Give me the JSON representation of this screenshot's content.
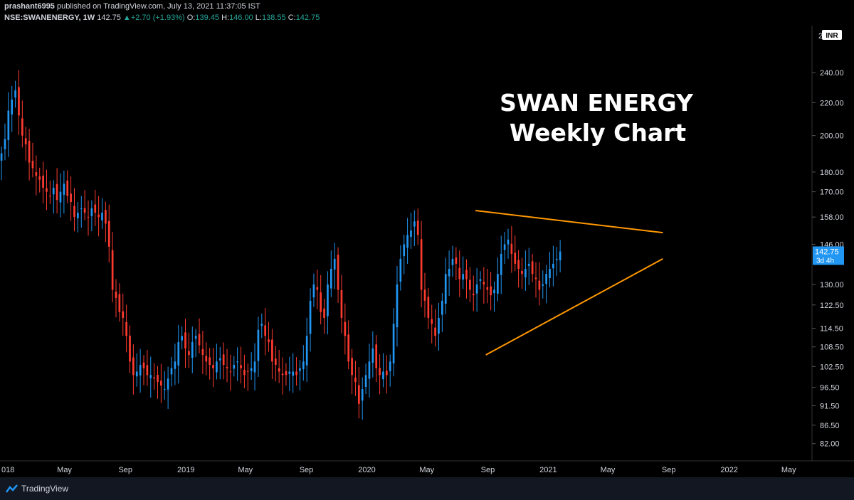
{
  "header": {
    "publisher": "prashant6995",
    "published_on": "published on TradingView.com, July 13, 2021 11:37:05 IST",
    "symbol": "NSE:SWANENERGY, 1W",
    "last": "142.75",
    "change": "+2.70 (+1.93%)",
    "o_label": "O:",
    "o": "139.45",
    "h_label": "H:",
    "h": "146.00",
    "l_label": "L:",
    "l": "138.55",
    "c_label": "C:",
    "c": "142.75"
  },
  "footer": {
    "brand": "TradingView"
  },
  "colors": {
    "up": "#2196f3",
    "down": "#ff3b30",
    "pattern": "#ff9800",
    "background": "#000000",
    "axis_text": "#d1d4dc",
    "price_label_bg": "#2196f3"
  },
  "chart_data": {
    "type": "candlestick",
    "title": "SWAN ENERGY",
    "subtitle": "Weekly Chart",
    "currency": "INR",
    "y_scale": "log",
    "ylim": [
      78,
      275
    ],
    "yticks": [
      240.0,
      220.0,
      200.0,
      180.0,
      170.0,
      158.0,
      146.0,
      130.0,
      122.5,
      114.5,
      108.5,
      102.5,
      96.5,
      91.5,
      86.5,
      82.0
    ],
    "ytick_labels": [
      "240.00",
      "220.00",
      "200.00",
      "180.00",
      "170.00",
      "158.00",
      "146.00",
      "130.00",
      "122.50",
      "114.50",
      "108.50",
      "102.50",
      "96.50",
      "91.50",
      "86.50",
      "82.00"
    ],
    "xlim": [
      "2017-12-22",
      "2022-06-17"
    ],
    "xticks": [
      {
        "label": "018",
        "date": "2018-01-01"
      },
      {
        "label": "May",
        "date": "2018-05-01"
      },
      {
        "label": "Sep",
        "date": "2018-09-01"
      },
      {
        "label": "2019",
        "date": "2019-01-01"
      },
      {
        "label": "May",
        "date": "2019-05-01"
      },
      {
        "label": "Sep",
        "date": "2019-09-01"
      },
      {
        "label": "2020",
        "date": "2020-01-01"
      },
      {
        "label": "May",
        "date": "2020-05-01"
      },
      {
        "label": "Sep",
        "date": "2020-09-01"
      },
      {
        "label": "2021",
        "date": "2021-01-01"
      },
      {
        "label": "May",
        "date": "2021-05-01"
      },
      {
        "label": "Sep",
        "date": "2021-09-01"
      },
      {
        "label": "2022",
        "date": "2022-01-01"
      },
      {
        "label": "May",
        "date": "2022-05-01"
      }
    ],
    "last_price_label": "142.75",
    "countdown_label": "3d 4h",
    "first_week": "2017-12-25",
    "closes": [
      190,
      198,
      215,
      222,
      228,
      212,
      200,
      195,
      185,
      182,
      178,
      176,
      172,
      170,
      168,
      172,
      166,
      170,
      174,
      168,
      165,
      158,
      160,
      162,
      160,
      158,
      162,
      160,
      158,
      160,
      155,
      145,
      128,
      125,
      120,
      118,
      112,
      104,
      100,
      101,
      103,
      102,
      100,
      100,
      99,
      98,
      97,
      96,
      99,
      102,
      104,
      110,
      112,
      108,
      106,
      110,
      112,
      109,
      106,
      104,
      103,
      102,
      104,
      105,
      103,
      102,
      101,
      103,
      104,
      102,
      100,
      101,
      102,
      104,
      114,
      116,
      112,
      110,
      104,
      103,
      101,
      100,
      100,
      101,
      101,
      100,
      102,
      104,
      112,
      124,
      130,
      128,
      120,
      118,
      130,
      136,
      140,
      128,
      118,
      112,
      104,
      100,
      98,
      92,
      96,
      100,
      104,
      108,
      102,
      100,
      101,
      100,
      104,
      116,
      130,
      140,
      146,
      150,
      152,
      156,
      150,
      128,
      124,
      118,
      116,
      112,
      118,
      124,
      134,
      136,
      140,
      138,
      132,
      134,
      132,
      128,
      126,
      130,
      132,
      130,
      128,
      126,
      128,
      134,
      142,
      146,
      148,
      142,
      138,
      136,
      134,
      136,
      138,
      134,
      132,
      128,
      130,
      134,
      136,
      138,
      140,
      143
    ],
    "patterns": [
      {
        "name": "upper-trendline",
        "from": {
          "date": "2020-08-07",
          "price": 161
        },
        "to": {
          "date": "2021-08-20",
          "price": 151
        }
      },
      {
        "name": "lower-trendline",
        "from": {
          "date": "2020-08-28",
          "price": 106
        },
        "to": {
          "date": "2021-08-20",
          "price": 140
        }
      }
    ]
  }
}
